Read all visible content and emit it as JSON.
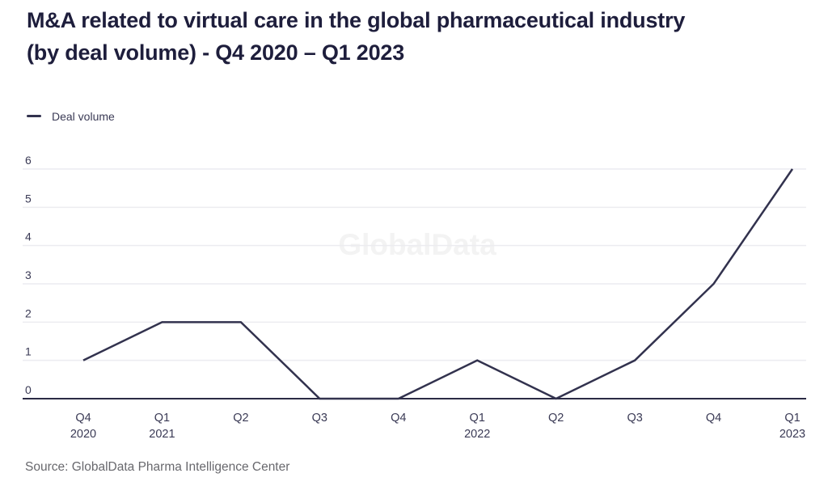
{
  "header": {
    "title_line1": "M&A related to virtual care in the global pharmaceutical industry",
    "title_line2": "(by deal volume) - Q4 2020 – Q1 2023"
  },
  "legend": {
    "label": "Deal volume"
  },
  "watermark": "GlobalData",
  "source": "Source: GlobalData Pharma Intelligence Center",
  "colors": {
    "title": "#1E1E3C",
    "line": "#32324E",
    "axis": "#2B2B45",
    "gridline": "#ECECF0",
    "tick_label": "#3A3A55",
    "source_text": "#68686D",
    "watermark": "#F3F3F3"
  },
  "chart_data": {
    "type": "line",
    "title": "M&A related to virtual care in the global pharmaceutical industry (by deal volume) - Q4 2020 – Q1 2023",
    "categories": [
      {
        "quarter": "Q4",
        "year": "2020"
      },
      {
        "quarter": "Q1",
        "year": "2021"
      },
      {
        "quarter": "Q2",
        "year": ""
      },
      {
        "quarter": "Q3",
        "year": ""
      },
      {
        "quarter": "Q4",
        "year": ""
      },
      {
        "quarter": "Q1",
        "year": "2022"
      },
      {
        "quarter": "Q2",
        "year": ""
      },
      {
        "quarter": "Q3",
        "year": ""
      },
      {
        "quarter": "Q4",
        "year": ""
      },
      {
        "quarter": "Q1",
        "year": "2023"
      }
    ],
    "series": [
      {
        "name": "Deal volume",
        "values": [
          1,
          2,
          2,
          0,
          0,
          1,
          0,
          1,
          3,
          6
        ]
      }
    ],
    "xlabel": "",
    "ylabel": "",
    "ylim": [
      0,
      6
    ],
    "yticks": [
      0,
      1,
      2,
      3,
      4,
      5,
      6
    ],
    "grid": "horizontal",
    "legend_position": "top-left"
  }
}
